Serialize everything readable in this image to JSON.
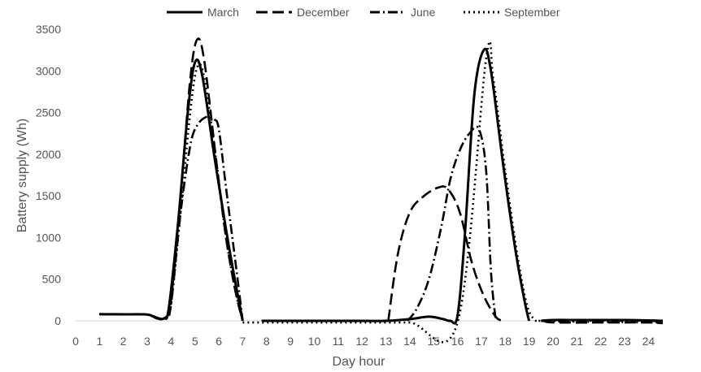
{
  "chart_data": {
    "type": "line",
    "title": "",
    "xlabel": "Day hour",
    "ylabel": "Battery supply (Wh)",
    "xlim": [
      0,
      24.6
    ],
    "ylim": [
      0,
      3500
    ],
    "x_ticks": [
      0,
      1,
      2,
      3,
      4,
      5,
      6,
      7,
      8,
      9,
      10,
      11,
      12,
      13,
      14,
      15,
      16,
      17,
      18,
      19,
      20,
      21,
      22,
      23,
      24
    ],
    "y_ticks": [
      0,
      500,
      1000,
      1500,
      2000,
      2500,
      3000,
      3500
    ],
    "grid": false,
    "legend_position": "top",
    "series": [
      {
        "name": "March",
        "dash": "",
        "segments": [
          [
            [
              1,
              80
            ],
            [
              2,
              78
            ],
            [
              3,
              75
            ],
            [
              3.4,
              30
            ],
            [
              3.7,
              30
            ],
            [
              3.9,
              150
            ],
            [
              4.3,
              1200
            ],
            [
              4.7,
              2500
            ],
            [
              5,
              3100
            ],
            [
              5.3,
              2950
            ],
            [
              5.8,
              2000
            ],
            [
              6.3,
              1100
            ],
            [
              6.7,
              450
            ],
            [
              7,
              0
            ]
          ],
          [
            [
              7.95,
              0
            ],
            [
              8,
              0
            ],
            [
              10,
              0
            ],
            [
              12,
              0
            ],
            [
              13,
              0
            ],
            [
              14,
              20
            ],
            [
              14.8,
              50
            ],
            [
              15.4,
              20
            ],
            [
              15.7,
              0
            ],
            [
              16,
              60
            ],
            [
              16.3,
              1000
            ],
            [
              16.7,
              2700
            ],
            [
              17.1,
              3250
            ],
            [
              17.4,
              3000
            ],
            [
              17.9,
              1900
            ],
            [
              18.4,
              900
            ],
            [
              18.8,
              250
            ],
            [
              19,
              0
            ]
          ],
          [
            [
              19.5,
              0
            ],
            [
              20,
              10
            ],
            [
              21,
              10
            ],
            [
              22,
              10
            ],
            [
              23,
              10
            ],
            [
              24,
              5
            ],
            [
              24.6,
              0
            ]
          ]
        ]
      },
      {
        "name": "December",
        "dash": "14 6",
        "segments": [
          [
            [
              1,
              80
            ],
            [
              2,
              78
            ],
            [
              3,
              75
            ],
            [
              3.5,
              30
            ],
            [
              3.8,
              50
            ],
            [
              4,
              250
            ],
            [
              4.4,
              1500
            ],
            [
              4.8,
              2900
            ],
            [
              5.1,
              3380
            ],
            [
              5.4,
              3100
            ],
            [
              5.9,
              1900
            ],
            [
              6.3,
              1000
            ],
            [
              6.7,
              350
            ],
            [
              7,
              0
            ]
          ],
          [
            [
              13.1,
              0
            ],
            [
              13.5,
              800
            ],
            [
              14,
              1300
            ],
            [
              14.6,
              1500
            ],
            [
              15.2,
              1600
            ],
            [
              15.6,
              1580
            ],
            [
              16.1,
              1300
            ],
            [
              16.6,
              700
            ],
            [
              17.1,
              300
            ],
            [
              17.6,
              50
            ],
            [
              17.9,
              0
            ]
          ],
          [
            [
              19.6,
              0
            ],
            [
              20,
              -20
            ],
            [
              22,
              -20
            ],
            [
              24,
              -20
            ],
            [
              24.6,
              -30
            ]
          ]
        ]
      },
      {
        "name": "June",
        "dash": "12 4 2 4",
        "segments": [
          [
            [
              1,
              80
            ],
            [
              2,
              78
            ],
            [
              3,
              75
            ],
            [
              3.5,
              30
            ],
            [
              3.8,
              40
            ],
            [
              4,
              200
            ],
            [
              4.4,
              1300
            ],
            [
              4.8,
              2100
            ],
            [
              5.1,
              2350
            ],
            [
              5.5,
              2450
            ],
            [
              5.8,
              2420
            ],
            [
              6,
              2300
            ],
            [
              6.3,
              1600
            ],
            [
              6.7,
              700
            ],
            [
              7,
              0
            ]
          ],
          [
            [
              13.9,
              0
            ],
            [
              14.3,
              150
            ],
            [
              14.8,
              500
            ],
            [
              15.3,
              1100
            ],
            [
              15.7,
              1700
            ],
            [
              16.1,
              2050
            ],
            [
              16.5,
              2250
            ],
            [
              16.9,
              2300
            ],
            [
              17.2,
              1800
            ],
            [
              17.4,
              600
            ],
            [
              17.6,
              0
            ]
          ],
          [
            [
              19.5,
              0
            ],
            [
              20,
              0
            ],
            [
              22,
              0
            ],
            [
              24,
              0
            ],
            [
              24.6,
              -20
            ]
          ]
        ]
      },
      {
        "name": "September",
        "dash": "2 4",
        "segments": [
          [
            [
              1,
              80
            ],
            [
              2,
              78
            ],
            [
              3,
              75
            ],
            [
              3.5,
              30
            ],
            [
              3.8,
              40
            ],
            [
              4,
              200
            ],
            [
              4.4,
              1300
            ],
            [
              4.8,
              2500
            ],
            [
              5.1,
              3050
            ],
            [
              5.4,
              2900
            ],
            [
              5.9,
              1900
            ],
            [
              6.3,
              1000
            ],
            [
              6.7,
              350
            ],
            [
              7,
              0
            ]
          ],
          [
            [
              7,
              -20
            ],
            [
              8,
              -20
            ],
            [
              10,
              -20
            ],
            [
              12,
              -20
            ],
            [
              14,
              -20
            ],
            [
              16,
              -20
            ],
            [
              17.2,
              3150
            ],
            [
              17.5,
              2900
            ],
            [
              18,
              1800
            ],
            [
              18.5,
              800
            ],
            [
              18.9,
              200
            ],
            [
              19.2,
              20
            ],
            [
              19.4,
              0
            ]
          ],
          [
            [
              19.4,
              0
            ],
            [
              21,
              -10
            ],
            [
              24.6,
              -20
            ]
          ]
        ]
      }
    ]
  }
}
